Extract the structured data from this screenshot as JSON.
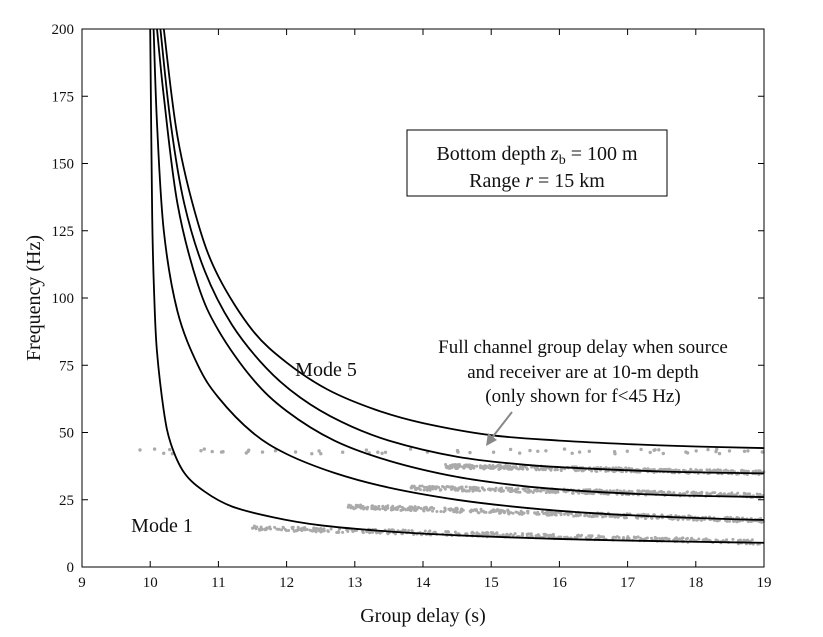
{
  "chart_data": {
    "type": "line",
    "xlabel": "Group delay (s)",
    "ylabel": "Frequency (Hz)",
    "xlim": [
      9,
      19
    ],
    "ylim": [
      0,
      200
    ],
    "xticks": [
      "9",
      "10",
      "11",
      "12",
      "13",
      "14",
      "15",
      "16",
      "17",
      "18",
      "19"
    ],
    "yticks": [
      "0",
      "25",
      "50",
      "75",
      "100",
      "125",
      "150",
      "175",
      "200"
    ],
    "grid": false,
    "legend_box": {
      "line1_prefix": "Bottom depth ",
      "line1_var": "z",
      "line1_sub": "b",
      "line1_suffix": " = 100 m",
      "line2_prefix": "Range ",
      "line2_var": "r",
      "line2_suffix": " = 15 km"
    },
    "annotation": {
      "lines": [
        "Full channel group delay when source",
        "and receiver are at 10-m depth",
        "(only shown for f<45 Hz)"
      ]
    },
    "mode_labels": {
      "first": "Mode 1",
      "last": "Mode 5"
    },
    "series": [
      {
        "x": [
          10.0,
          10.03,
          10.06,
          10.1,
          10.2,
          10.3,
          10.5,
          10.8,
          11.2,
          11.8,
          12.5,
          13.5,
          14.5,
          15.5,
          16.5,
          17.5,
          18.5,
          19.0
        ],
        "y": [
          200,
          130,
          100,
          80,
          58,
          46,
          35,
          28,
          22.5,
          18.5,
          15.5,
          13.2,
          11.8,
          10.8,
          10.1,
          9.6,
          9.2,
          9.0
        ]
      },
      {
        "x": [
          10.05,
          10.1,
          10.2,
          10.4,
          10.7,
          11.0,
          11.5,
          12.0,
          12.7,
          13.5,
          14.5,
          15.5,
          16.5,
          17.5,
          18.5,
          19.0
        ],
        "y": [
          200,
          165,
          125,
          95,
          75,
          63,
          50,
          42,
          35,
          29.5,
          25,
          22,
          20,
          18.7,
          17.8,
          17.5
        ]
      },
      {
        "x": [
          10.1,
          10.2,
          10.4,
          10.7,
          11.0,
          11.5,
          12.0,
          12.7,
          13.5,
          14.5,
          15.5,
          16.5,
          17.5,
          18.5,
          19.0
        ],
        "y": [
          200,
          175,
          135,
          105,
          88,
          70,
          58,
          47,
          39.5,
          33.5,
          30,
          28,
          26.8,
          26.2,
          26.0
        ]
      },
      {
        "x": [
          10.15,
          10.3,
          10.5,
          10.8,
          11.2,
          11.7,
          12.2,
          12.8,
          13.5,
          14.5,
          15.5,
          16.5,
          17.5,
          18.5,
          19.0
        ],
        "y": [
          200,
          165,
          135,
          110,
          90,
          74,
          63,
          54,
          47,
          41,
          38,
          36.5,
          35.5,
          35,
          34.8
        ]
      },
      {
        "x": [
          10.2,
          10.4,
          10.7,
          11.0,
          11.5,
          12.0,
          12.6,
          13.3,
          14.0,
          15.0,
          16.0,
          17.0,
          18.0,
          19.0
        ],
        "y": [
          200,
          160,
          128,
          108,
          88,
          76,
          66,
          58.5,
          53.5,
          49,
          47,
          45.7,
          44.8,
          44.2
        ]
      }
    ],
    "scatter_bands": [
      {
        "x_start": 11.5,
        "x_end": 19.0,
        "y_start": 14.5,
        "y_end": 9.2
      },
      {
        "x_start": 12.9,
        "x_end": 19.0,
        "y_start": 22.5,
        "y_end": 17.3
      },
      {
        "x_start": 13.8,
        "x_end": 19.0,
        "y_start": 29.5,
        "y_end": 26.5
      },
      {
        "x_start": 14.3,
        "x_end": 19.0,
        "y_start": 37.5,
        "y_end": 35.0
      },
      {
        "x_start": 9.3,
        "x_end": 19.0,
        "y_start": 43.0,
        "y_end": 43.0,
        "sparse": true
      }
    ],
    "dot_color": "#aaaaaa",
    "line_color": "#000000"
  }
}
